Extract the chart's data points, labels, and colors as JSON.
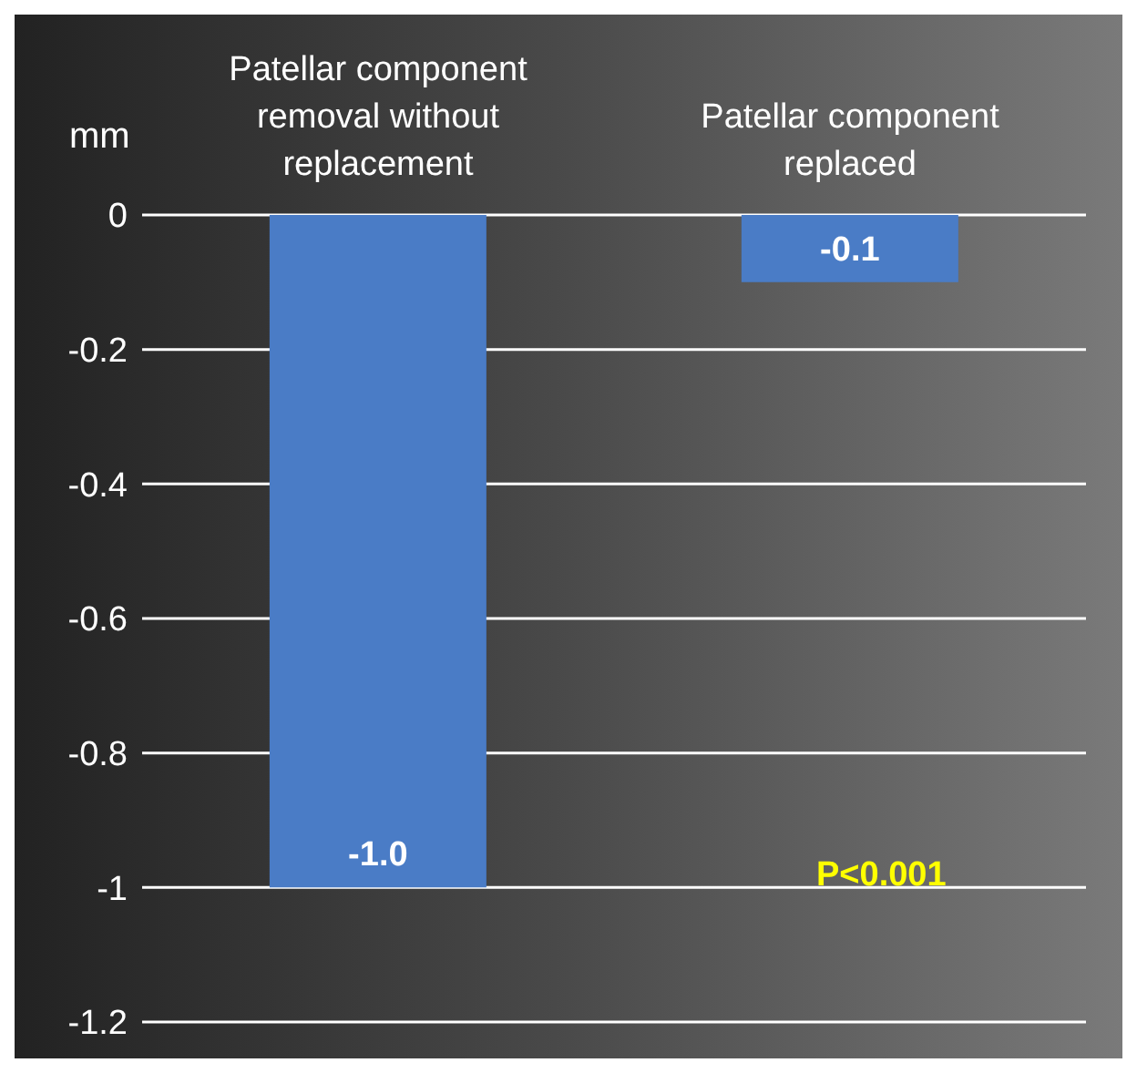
{
  "chart_data": {
    "type": "bar",
    "ylabel": "mm",
    "categories": [
      "Patellar component removal without replacement",
      "Patellar component replaced"
    ],
    "values": [
      -1.0,
      -0.1
    ],
    "value_labels": [
      "-1.0",
      "-0.1"
    ],
    "color": "#4a7cc6",
    "ylim": [
      -1.2,
      0
    ],
    "yticks": [
      -1.2,
      -1,
      -0.8,
      -0.6,
      -0.4,
      -0.2,
      0
    ],
    "grid": "y",
    "legend": false,
    "annotations": [
      "P<0.001"
    ]
  }
}
